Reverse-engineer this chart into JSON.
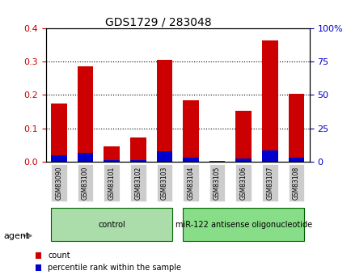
{
  "title": "GDS1729 / 283048",
  "samples": [
    "GSM83090",
    "GSM83100",
    "GSM83101",
    "GSM83102",
    "GSM83103",
    "GSM83104",
    "GSM83105",
    "GSM83106",
    "GSM83107",
    "GSM83108"
  ],
  "count_values": [
    0.175,
    0.285,
    0.047,
    0.073,
    0.305,
    0.185,
    0.002,
    0.152,
    0.362,
    0.203
  ],
  "percentile_values": [
    0.046,
    0.068,
    0.01,
    0.013,
    0.08,
    0.033,
    0.001,
    0.025,
    0.088,
    0.033
  ],
  "ylim_left": [
    0,
    0.4
  ],
  "ylim_right": [
    0,
    100
  ],
  "yticks_left": [
    0,
    0.1,
    0.2,
    0.3,
    0.4
  ],
  "yticks_right": [
    0,
    25,
    50,
    75,
    100
  ],
  "bar_color_count": "#cc0000",
  "bar_color_percentile": "#0000cc",
  "bar_width": 0.6,
  "groups": [
    {
      "label": "control",
      "indices": [
        0,
        1,
        2,
        3,
        4
      ],
      "color": "#aaddaa"
    },
    {
      "label": "miR-122 antisense oligonucleotide",
      "indices": [
        5,
        6,
        7,
        8,
        9
      ],
      "color": "#88dd88"
    }
  ],
  "agent_label": "agent",
  "legend_count_label": "count",
  "legend_percentile_label": "percentile rank within the sample",
  "grid_style": "dotted",
  "tick_label_color_left": "#cc0000",
  "tick_label_color_right": "#0000cc",
  "bg_color": "#ffffff",
  "plot_bg_color": "#ffffff",
  "xticklabel_bg": "#cccccc"
}
